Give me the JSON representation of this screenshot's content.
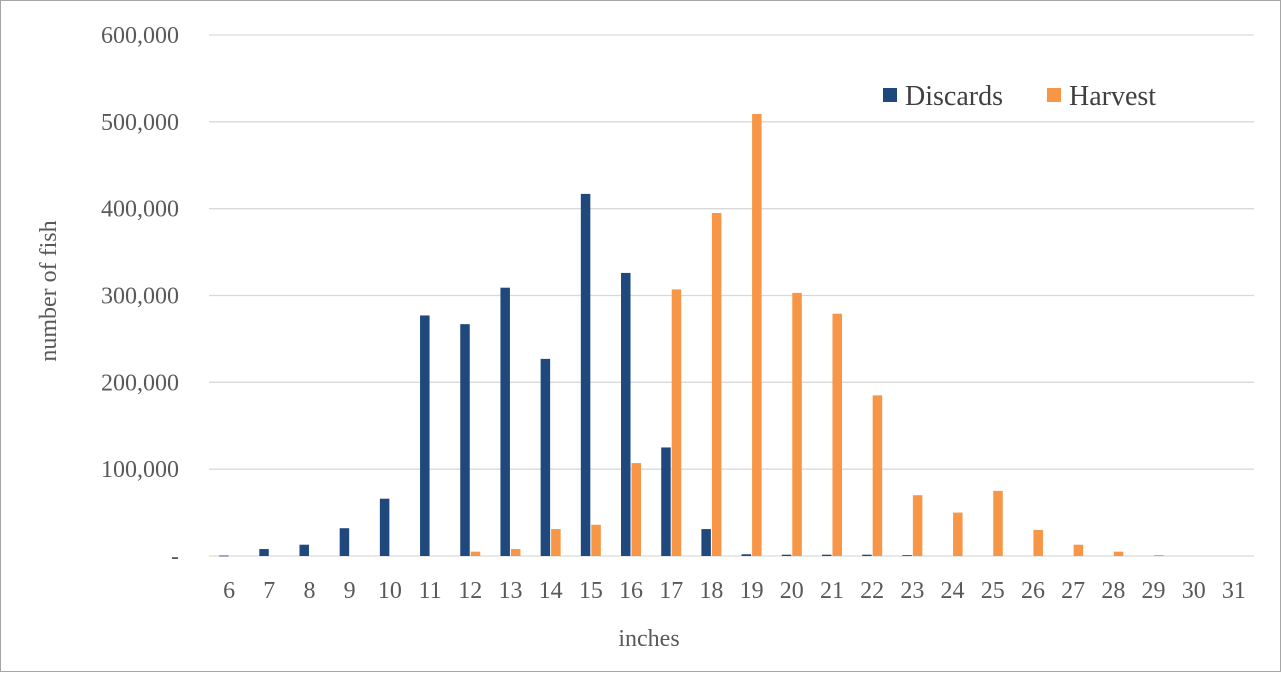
{
  "chart_data": {
    "type": "bar",
    "title": "",
    "xlabel": "inches",
    "ylabel": "number of fish",
    "ylim": [
      0,
      600000
    ],
    "yticks": [
      {
        "value": 0,
        "label": "-"
      },
      {
        "value": 100000,
        "label": "100,000"
      },
      {
        "value": 200000,
        "label": "200,000"
      },
      {
        "value": 300000,
        "label": "300,000"
      },
      {
        "value": 400000,
        "label": "400,000"
      },
      {
        "value": 500000,
        "label": "500,000"
      },
      {
        "value": 600000,
        "label": "600,000"
      }
    ],
    "grid": true,
    "legend_position": "top-right",
    "categories": [
      "6",
      "7",
      "8",
      "9",
      "10",
      "11",
      "12",
      "13",
      "14",
      "15",
      "16",
      "17",
      "18",
      "19",
      "20",
      "21",
      "22",
      "23",
      "24",
      "25",
      "26",
      "27",
      "28",
      "29",
      "30",
      "31"
    ],
    "series": [
      {
        "name": "Discards",
        "color": "#1f497d",
        "values": [
          500,
          8000,
          13000,
          32000,
          66000,
          277000,
          267000,
          309000,
          227000,
          417000,
          326000,
          125000,
          31000,
          2000,
          1500,
          1500,
          1500,
          1000,
          0,
          0,
          0,
          0,
          0,
          0,
          0,
          0
        ]
      },
      {
        "name": "Harvest",
        "color": "#f79646",
        "values": [
          0,
          0,
          0,
          0,
          0,
          0,
          5000,
          8000,
          31000,
          36000,
          107000,
          307000,
          395000,
          509000,
          303000,
          279000,
          185000,
          70000,
          50000,
          75000,
          30000,
          13000,
          5000,
          1000,
          0,
          0
        ]
      }
    ]
  }
}
